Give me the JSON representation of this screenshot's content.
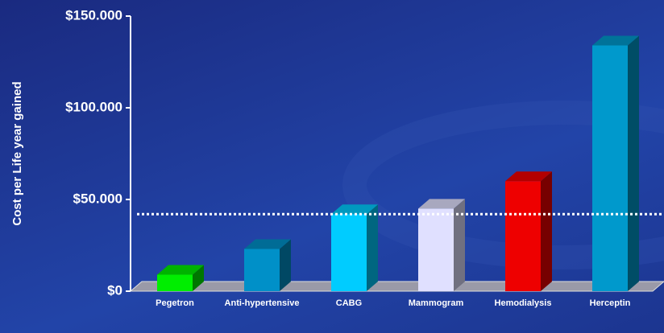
{
  "chart_data": {
    "type": "bar3d",
    "ylabel": "Cost per Life year gained",
    "categories": [
      "Pegetron",
      "Anti-hypertensive",
      "CABG",
      "Mammogram",
      "Hemodialysis",
      "Herceptin"
    ],
    "values": [
      9000,
      23000,
      42000,
      45000,
      60000,
      134000
    ],
    "colors": [
      "#00ee00",
      "#0090c8",
      "#00ccff",
      "#e0e0ff",
      "#ee0000",
      "#0099cc"
    ],
    "ylim": [
      0,
      150000
    ],
    "yticks": [
      {
        "value": 0,
        "label": "$0"
      },
      {
        "value": 50000,
        "label": "$50.000"
      },
      {
        "value": 100000,
        "label": "$100.000"
      },
      {
        "value": 150000,
        "label": "$150.000"
      }
    ],
    "reference_line": 42000
  }
}
